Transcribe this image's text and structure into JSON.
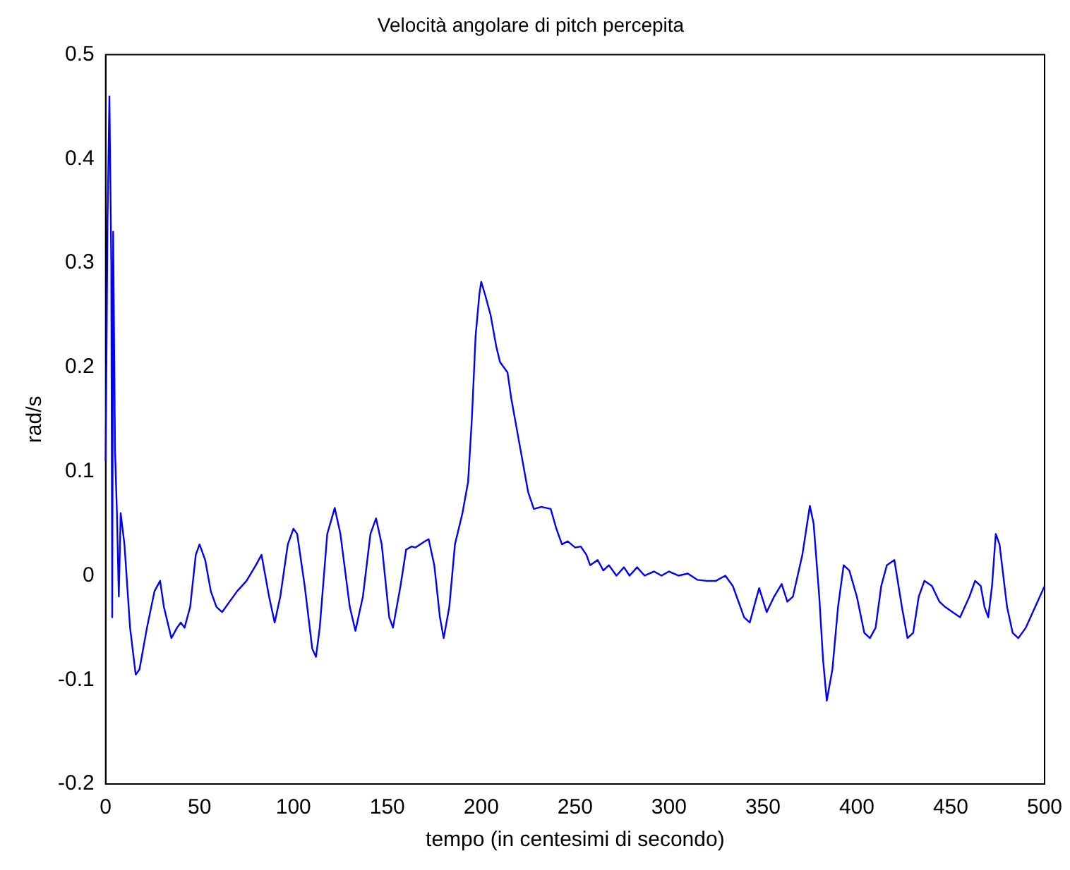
{
  "chart_data": {
    "type": "line",
    "title": "Velocità angolare di pitch percepita",
    "xlabel": "tempo (in centesimi di secondo)",
    "ylabel": "rad/s",
    "x": [
      0,
      1,
      2,
      3,
      3.5,
      4,
      5,
      6,
      7,
      8,
      10,
      13,
      16,
      18,
      22,
      26,
      29,
      31,
      35,
      38,
      40,
      42,
      45,
      48,
      50,
      53,
      56,
      59,
      62,
      66,
      70,
      75,
      80,
      83,
      87,
      90,
      93,
      97,
      100,
      102,
      106,
      110,
      112,
      114,
      118,
      122,
      125,
      130,
      133,
      137,
      141,
      144,
      147,
      151,
      153,
      157,
      160,
      163,
      165,
      170,
      172,
      175,
      178,
      180,
      183,
      186,
      190,
      193,
      195,
      197,
      199,
      200,
      202,
      205,
      208,
      210,
      214,
      216,
      220,
      225,
      228,
      232,
      237,
      240,
      243,
      246,
      250,
      253,
      256,
      258,
      262,
      265,
      268,
      272,
      276,
      279,
      283,
      287,
      292,
      296,
      300,
      305,
      310,
      315,
      320,
      325,
      330,
      334,
      340,
      343,
      346,
      348,
      352,
      356,
      360,
      363,
      366,
      371,
      375,
      377,
      380,
      382,
      384,
      387,
      390,
      393,
      396,
      400,
      404,
      407,
      410,
      413,
      416,
      420,
      424,
      427,
      430,
      433,
      436,
      440,
      444,
      447,
      451,
      455,
      460,
      463,
      466,
      468,
      470,
      472,
      474,
      476,
      480,
      483,
      486,
      490,
      495,
      500
    ],
    "series": [
      {
        "color": "#0000ff",
        "values": [
          0.11,
          0.34,
          0.46,
          0.3,
          -0.04,
          0.33,
          0.12,
          0.06,
          -0.02,
          0.06,
          0.03,
          -0.05,
          -0.095,
          -0.09,
          -0.05,
          -0.015,
          -0.005,
          -0.03,
          -0.06,
          -0.05,
          -0.045,
          -0.05,
          -0.03,
          0.02,
          0.03,
          0.015,
          -0.015,
          -0.03,
          -0.035,
          -0.025,
          -0.015,
          -0.005,
          0.01,
          0.02,
          -0.02,
          -0.045,
          -0.02,
          0.03,
          0.045,
          0.04,
          -0.01,
          -0.07,
          -0.078,
          -0.05,
          0.04,
          0.065,
          0.04,
          -0.03,
          -0.053,
          -0.02,
          0.04,
          0.055,
          0.03,
          -0.04,
          -0.05,
          -0.01,
          0.025,
          0.028,
          0.027,
          0.033,
          0.035,
          0.01,
          -0.04,
          -0.06,
          -0.03,
          0.03,
          0.06,
          0.09,
          0.15,
          0.23,
          0.27,
          0.282,
          0.27,
          0.25,
          0.22,
          0.205,
          0.195,
          0.17,
          0.13,
          0.08,
          0.064,
          0.066,
          0.064,
          0.045,
          0.03,
          0.033,
          0.027,
          0.028,
          0.02,
          0.01,
          0.015,
          0.005,
          0.01,
          0.0,
          0.008,
          0.0,
          0.008,
          0.0,
          0.004,
          0.0,
          0.004,
          0.0,
          0.002,
          -0.004,
          -0.005,
          -0.005,
          0.0,
          -0.01,
          -0.04,
          -0.045,
          -0.025,
          -0.012,
          -0.035,
          -0.02,
          -0.008,
          -0.025,
          -0.02,
          0.02,
          0.067,
          0.05,
          -0.02,
          -0.08,
          -0.12,
          -0.09,
          -0.03,
          0.01,
          0.005,
          -0.02,
          -0.055,
          -0.06,
          -0.05,
          -0.01,
          0.01,
          0.015,
          -0.03,
          -0.06,
          -0.055,
          -0.02,
          -0.005,
          -0.01,
          -0.025,
          -0.03,
          -0.035,
          -0.04,
          -0.02,
          -0.005,
          -0.01,
          -0.03,
          -0.04,
          -0.01,
          0.04,
          0.03,
          -0.03,
          -0.055,
          -0.06,
          -0.05,
          -0.03,
          -0.01
        ]
      }
    ],
    "xlim": [
      0,
      500
    ],
    "xticks": [
      0,
      50,
      100,
      150,
      200,
      250,
      300,
      350,
      400,
      450,
      500
    ],
    "ylim": [
      -0.2,
      0.5
    ],
    "yticks": [
      -0.2,
      -0.1,
      0,
      0.1,
      0.2,
      0.3,
      0.4,
      0.5
    ],
    "grid": false,
    "legend": false,
    "marker": "none",
    "line_style": "solid"
  }
}
